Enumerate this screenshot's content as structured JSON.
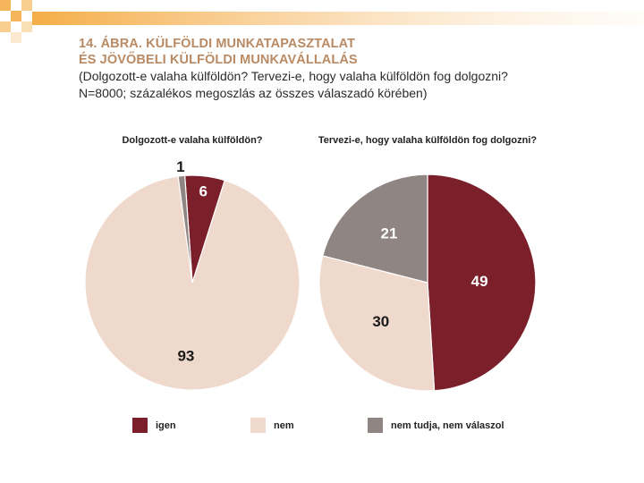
{
  "title": {
    "line1": "14. ÁBRA. KÜLFÖLDI MUNKATAPASZTALAT",
    "line2": "ÉS JÖVŐBELI KÜLFÖLDI MUNKAVÁLLALÁS",
    "subtitle1": "(Dolgozott-e valaha külföldön? Tervezi-e, hogy valaha külföldön fog dolgozni?",
    "subtitle2": "N=8000; százalékos megoszlás az összes válaszadó körében)"
  },
  "colors": {
    "igen": "#7b1f2b",
    "nem": "#efd9cc",
    "nem_tudja": "#8f8583",
    "title": "#b98a63",
    "label_light": "#ffffff",
    "label_dark": "#1a1a1a"
  },
  "legend": [
    {
      "key": "igen",
      "label": "igen"
    },
    {
      "key": "nem",
      "label": "nem"
    },
    {
      "key": "nem_tudja",
      "label": "nem tudja, nem válaszol"
    }
  ],
  "chart_data": [
    {
      "type": "pie",
      "title": "Dolgozott-e valaha külföldön?",
      "slices": [
        {
          "key": "igen",
          "label": "igen",
          "value": 6
        },
        {
          "key": "nem",
          "label": "nem",
          "value": 93
        },
        {
          "key": "nem_tudja",
          "label": "nem tudja, nem válaszol",
          "value": 1
        }
      ],
      "start_angle_deg": -4,
      "direction": "clockwise",
      "value_labels_shown": true
    },
    {
      "type": "pie",
      "title": "Tervezi-e, hogy valaha külföldön fog dolgozni?",
      "slices": [
        {
          "key": "igen",
          "label": "igen",
          "value": 49
        },
        {
          "key": "nem",
          "label": "nem",
          "value": 30
        },
        {
          "key": "nem_tudja",
          "label": "nem tudja, nem válaszol",
          "value": 21
        }
      ],
      "start_angle_deg": 0,
      "direction": "clockwise",
      "value_labels_shown": true
    }
  ]
}
